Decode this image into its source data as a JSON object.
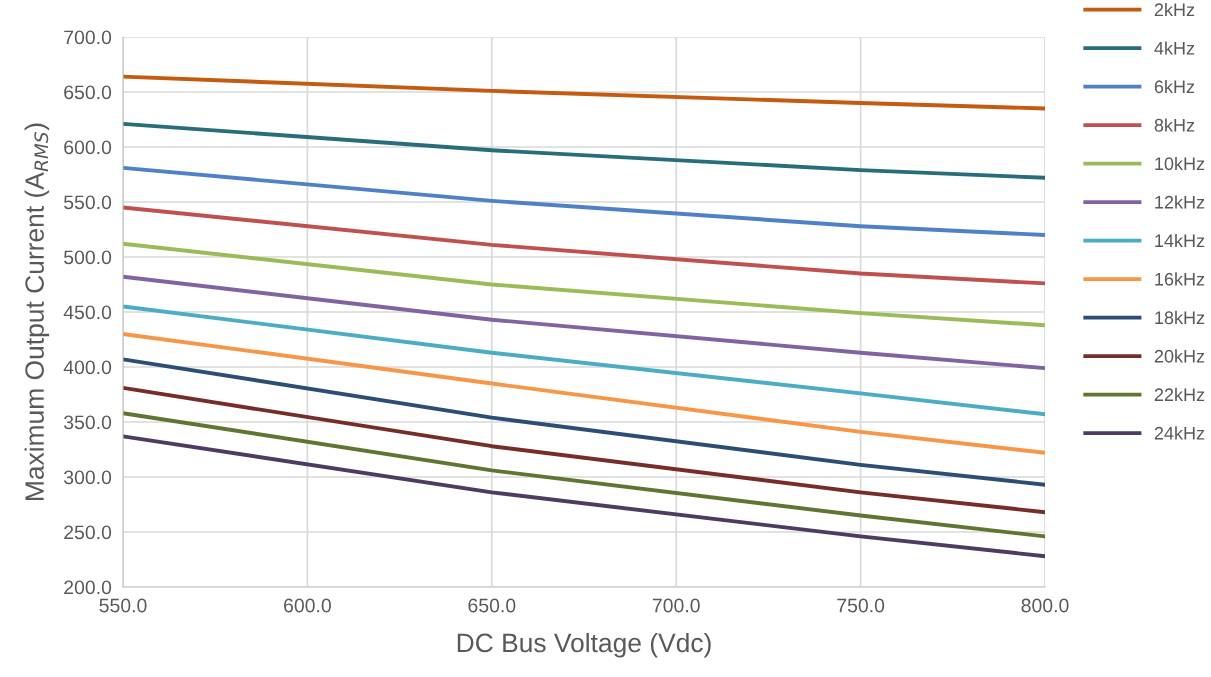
{
  "chart_data": {
    "type": "line",
    "xlabel": "DC Bus Voltage (Vdc)",
    "ylabel": "Maximum Output Current (A$_{RMS}$)",
    "x": [
      550,
      650,
      750,
      800
    ],
    "series": [
      {
        "name": "2kHz",
        "color": "#c55a11",
        "values": [
          664,
          651,
          640,
          635
        ]
      },
      {
        "name": "4kHz",
        "color": "#276d7a",
        "values": [
          621,
          597,
          579,
          572
        ]
      },
      {
        "name": "6kHz",
        "color": "#4f81c8",
        "values": [
          581,
          551,
          528,
          520
        ]
      },
      {
        "name": "8kHz",
        "color": "#c0504d",
        "values": [
          545,
          511,
          485,
          476
        ]
      },
      {
        "name": "10kHz",
        "color": "#9bbb59",
        "values": [
          512,
          475,
          449,
          438
        ]
      },
      {
        "name": "12kHz",
        "color": "#8064a2",
        "values": [
          482,
          443,
          413,
          399
        ]
      },
      {
        "name": "14kHz",
        "color": "#4bacc6",
        "values": [
          455,
          413,
          376,
          357
        ]
      },
      {
        "name": "16kHz",
        "color": "#f79646",
        "values": [
          430,
          385,
          341,
          322
        ]
      },
      {
        "name": "18kHz",
        "color": "#2c4d75",
        "values": [
          407,
          354,
          311,
          293
        ]
      },
      {
        "name": "20kHz",
        "color": "#772c2a",
        "values": [
          381,
          328,
          286,
          268
        ]
      },
      {
        "name": "22kHz",
        "color": "#5f7530",
        "values": [
          358,
          306,
          265,
          246
        ]
      },
      {
        "name": "24kHz",
        "color": "#4d3b62",
        "values": [
          337,
          286,
          246,
          228
        ]
      }
    ],
    "xlim": [
      550,
      800
    ],
    "xticks": [
      {
        "value": 550,
        "label": "550.0"
      },
      {
        "value": 600,
        "label": "600.0"
      },
      {
        "value": 650,
        "label": "650.0"
      },
      {
        "value": 700,
        "label": "700.0"
      },
      {
        "value": 750,
        "label": "750.0"
      },
      {
        "value": 800,
        "label": "800.0"
      }
    ],
    "ylim": [
      200,
      700
    ],
    "yticks": [
      {
        "value": 200,
        "label": "200.0"
      },
      {
        "value": 250,
        "label": "250.0"
      },
      {
        "value": 300,
        "label": "300.0"
      },
      {
        "value": 350,
        "label": "350.0"
      },
      {
        "value": 400,
        "label": "400.0"
      },
      {
        "value": 450,
        "label": "450.0"
      },
      {
        "value": 500,
        "label": "500.0"
      },
      {
        "value": 550,
        "label": "550.0"
      },
      {
        "value": 600,
        "label": "600.0"
      },
      {
        "value": 650,
        "label": "650.0"
      },
      {
        "value": 700,
        "label": "700.0"
      }
    ],
    "grid": true,
    "legend": "right",
    "marker": "none",
    "line_style": "solid"
  }
}
